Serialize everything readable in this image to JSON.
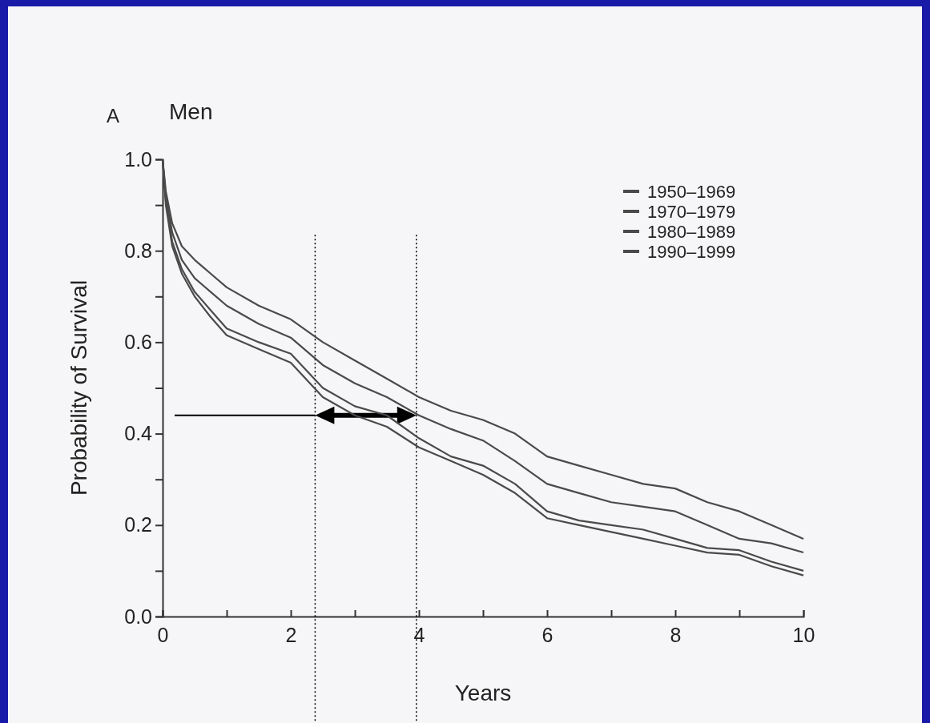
{
  "chart_data": {
    "type": "line",
    "title": "Men",
    "annotations": [
      "A"
    ],
    "xlabel": "Years",
    "ylabel": "Probability of Survival",
    "xlim": [
      0,
      10
    ],
    "ylim": [
      0,
      1
    ],
    "xticks": [
      0,
      {
        "value": 1,
        "label": null
      },
      2,
      {
        "value": 3,
        "label": null
      },
      4,
      {
        "value": 5,
        "label": null
      },
      6,
      {
        "value": 7,
        "label": null
      },
      8,
      {
        "value": 9,
        "label": null
      },
      10
    ],
    "yticks": [
      {
        "value": 0,
        "label": "0.0"
      },
      {
        "value": 0.1,
        "label": null
      },
      0.2,
      {
        "value": 0.3,
        "label": null
      },
      0.4,
      {
        "value": 0.5,
        "label": null
      },
      0.6,
      {
        "value": 0.7,
        "label": null
      },
      0.8,
      {
        "value": 0.9,
        "label": null
      },
      {
        "value": 1,
        "label": "1.0"
      }
    ],
    "x": [
      0,
      0.05,
      0.15,
      0.3,
      0.5,
      0.75,
      1,
      1.5,
      2,
      2.5,
      3,
      3.5,
      4,
      4.5,
      5,
      5.5,
      6,
      6.5,
      7,
      7.5,
      8,
      8.5,
      9,
      9.5,
      10
    ],
    "legend": "top right",
    "grid": false,
    "marker": "none",
    "line_style": "solid",
    "ref_lines": [
      {
        "axis": "y",
        "value": 0.44,
        "color": "#000000",
        "line_style": "solid"
      },
      {
        "axis": "x",
        "value": 2.38,
        "color": "#000000",
        "line_style": "dotted"
      },
      {
        "axis": "x",
        "value": 3.96,
        "color": "#000000",
        "line_style": "dotted"
      }
    ],
    "series": [
      {
        "name": "1950–1969",
        "color": "#4a4a4a",
        "values": [
          1,
          0.9,
          0.81,
          0.75,
          0.7,
          0.655,
          0.615,
          0.585,
          0.555,
          0.48,
          0.44,
          0.415,
          0.37,
          0.34,
          0.31,
          0.27,
          0.215,
          0.2,
          0.185,
          0.17,
          0.155,
          0.14,
          0.135,
          0.11,
          0.09
        ]
      },
      {
        "name": "1970–1979",
        "color": "#4a4a4a",
        "values": [
          1,
          0.91,
          0.82,
          0.76,
          0.71,
          0.67,
          0.63,
          0.6,
          0.575,
          0.5,
          0.46,
          0.44,
          0.39,
          0.35,
          0.33,
          0.29,
          0.23,
          0.21,
          0.2,
          0.19,
          0.17,
          0.15,
          0.145,
          0.12,
          0.1
        ]
      },
      {
        "name": "1980–1989",
        "color": "#4a4a4a",
        "values": [
          1,
          0.92,
          0.84,
          0.78,
          0.74,
          0.71,
          0.68,
          0.64,
          0.61,
          0.55,
          0.51,
          0.48,
          0.44,
          0.41,
          0.385,
          0.34,
          0.29,
          0.27,
          0.25,
          0.24,
          0.23,
          0.2,
          0.17,
          0.16,
          0.14
        ]
      },
      {
        "name": "1990–1999",
        "color": "#4a4a4a",
        "values": [
          1,
          0.93,
          0.86,
          0.81,
          0.78,
          0.75,
          0.72,
          0.68,
          0.65,
          0.6,
          0.56,
          0.52,
          0.48,
          0.45,
          0.43,
          0.4,
          0.35,
          0.33,
          0.31,
          0.29,
          0.28,
          0.25,
          0.23,
          0.2,
          0.17
        ]
      }
    ]
  }
}
